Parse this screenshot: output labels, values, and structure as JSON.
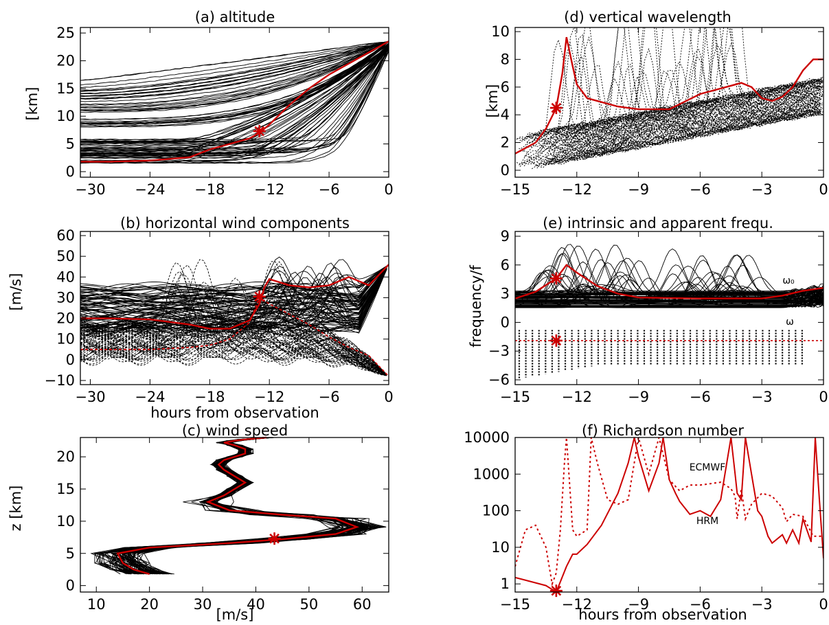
{
  "colors": {
    "model": "#000000",
    "highlight": "#cc0000",
    "background": "#ffffff"
  },
  "panels": {
    "a": {
      "title": "(a) altitude",
      "ylabel": "[km]",
      "xlabel": "",
      "xticks": [
        "-30",
        "-24",
        "-18",
        "-12",
        "-6",
        "0"
      ],
      "yticks": [
        "0",
        "5",
        "10",
        "15",
        "20",
        "25"
      ]
    },
    "b": {
      "title": "(b) horizontal wind components",
      "ylabel": "[m/s]",
      "xlabel": "hours from observation",
      "xticks": [
        "-30",
        "-24",
        "-18",
        "-12",
        "-6",
        "0"
      ],
      "yticks": [
        "-10",
        "0",
        "10",
        "20",
        "30",
        "40",
        "50",
        "60"
      ]
    },
    "c": {
      "title": "(c) wind speed",
      "ylabel": "z [km]",
      "xlabel": "[m/s]",
      "xticks": [
        "10",
        "20",
        "30",
        "40",
        "50",
        "60"
      ],
      "yticks": [
        "0",
        "5",
        "10",
        "15",
        "20"
      ]
    },
    "d": {
      "title": "(d) vertical wavelength",
      "ylabel": "[km]",
      "xlabel": "",
      "xticks": [
        "-15",
        "-12",
        "-9",
        "-6",
        "-3",
        "0"
      ],
      "yticks": [
        "0",
        "2",
        "4",
        "6",
        "8",
        "10"
      ]
    },
    "e": {
      "title": "(e) intrinsic and apparent frequ.",
      "ylabel": "frequency/f",
      "xlabel": "",
      "xticks": [
        "-15",
        "-12",
        "-9",
        "-6",
        "-3",
        "0"
      ],
      "yticks": [
        "-6",
        "-3",
        "0",
        "3",
        "6",
        "9"
      ],
      "annotations": [
        "ω₀",
        "ω"
      ]
    },
    "f": {
      "title": "(f) Richardson number",
      "ylabel": "",
      "xlabel": "hours from observation",
      "xticks": [
        "-15",
        "-12",
        "-9",
        "-6",
        "-3",
        "0"
      ],
      "yticks": [
        "1",
        "10",
        "100",
        "1000",
        "10000"
      ],
      "annotations": [
        "ECMWF",
        "HRM"
      ]
    }
  },
  "chart_data": [
    {
      "type": "line",
      "title": "(a) altitude",
      "xlabel": "",
      "ylabel": "[km]",
      "xlim": [
        -31,
        0
      ],
      "ylim": [
        -1,
        26
      ],
      "series": [
        {
          "x": [
            -31,
            -28,
            -24,
            -20,
            -18,
            -16,
            -14,
            -13,
            -12,
            -10,
            -8,
            -6,
            -4,
            -2,
            0
          ],
          "y": [
            1.8,
            1.8,
            2.0,
            2.6,
            4.0,
            5.0,
            6.0,
            7.0,
            8.5,
            12,
            15,
            17.5,
            19.5,
            21.5,
            23.5
          ]
        }
      ],
      "ensemble": {
        "count": 90,
        "start_range_km": [
          1.5,
          16.5
        ],
        "end_km": 23.5
      },
      "marker": {
        "x": -13,
        "y": 7.3
      }
    },
    {
      "type": "line",
      "title": "(b) horizontal wind components",
      "xlabel": "hours from observation",
      "ylabel": "[m/s]",
      "xlim": [
        -31,
        0
      ],
      "ylim": [
        -12,
        62
      ],
      "series": [
        {
          "x": [
            -31,
            -28,
            -24,
            -20,
            -18,
            -16,
            -14,
            -13,
            -12.5,
            -12,
            -10,
            -8,
            -6,
            -4,
            -2,
            0
          ],
          "y": [
            20,
            20,
            19.5,
            17,
            15,
            15,
            19,
            27,
            35,
            39,
            36,
            35,
            36,
            40,
            36,
            46
          ]
        },
        {
          "x": [
            -31,
            -28,
            -24,
            -20,
            -18,
            -16,
            -14,
            -13,
            -12,
            -10,
            -8,
            -6,
            -4,
            -2,
            0
          ],
          "y": [
            5,
            5,
            5,
            6,
            7,
            10,
            18,
            30,
            27,
            22,
            17,
            11,
            6,
            2,
            -8
          ]
        }
      ],
      "marker": {
        "x": -13,
        "y": 30.5
      }
    },
    {
      "type": "line",
      "title": "(c) wind speed",
      "xlabel": "[m/s]",
      "ylabel": "z [km]",
      "xlim": [
        7,
        65
      ],
      "ylim": [
        -1,
        23
      ],
      "series": [
        {
          "x": [
            20,
            17,
            15,
            14,
            20,
            35,
            45,
            55,
            59,
            55,
            45,
            35,
            31,
            34,
            36,
            38,
            36,
            34,
            33,
            34,
            36,
            38,
            38,
            36,
            34,
            36,
            38,
            42
          ],
          "y": [
            1.8,
            2.5,
            3.5,
            5.0,
            5.9,
            6.6,
            7.2,
            8.0,
            9.1,
            10.4,
            11,
            11.7,
            13,
            14,
            15,
            16,
            17,
            18,
            18.8,
            19.5,
            20,
            20.5,
            21.2,
            21.8,
            22.2,
            22.5,
            22.7,
            23
          ]
        }
      ],
      "marker": {
        "x": 43.5,
        "y": 7.3
      }
    },
    {
      "type": "line",
      "title": "(d) vertical wavelength",
      "xlabel": "",
      "ylabel": "[km]",
      "xlim": [
        -15,
        0
      ],
      "ylim": [
        -0.5,
        10.3
      ],
      "series": [
        {
          "x": [
            -15,
            -14,
            -13.5,
            -13,
            -12.7,
            -12.5,
            -12.2,
            -12,
            -11.5,
            -10,
            -9,
            -7.5,
            -6,
            -4.5,
            -4,
            -3.5,
            -3,
            -2.5,
            -2,
            -1.5,
            -1,
            -0.5,
            0
          ],
          "y": [
            1.2,
            2.0,
            3.0,
            4.5,
            7,
            9.6,
            7.5,
            6.2,
            5.2,
            4.6,
            4.4,
            4.4,
            5.5,
            6.1,
            6.3,
            6.0,
            5.2,
            5.0,
            5.3,
            6.0,
            7.2,
            8.0,
            8.0
          ]
        }
      ],
      "marker": {
        "x": -13,
        "y": 4.5
      }
    },
    {
      "type": "line",
      "title": "(e) intrinsic and apparent frequ.",
      "xlabel": "",
      "ylabel": "frequency/f",
      "xlim": [
        -15,
        0
      ],
      "ylim": [
        -6.5,
        9.5
      ],
      "series": [
        {
          "name": "ω₀",
          "x": [
            -15,
            -14,
            -13,
            -12.5,
            -12,
            -11,
            -10,
            -9,
            -6,
            -3,
            -2,
            -1,
            0
          ],
          "y": [
            2.5,
            3.2,
            4.6,
            6.0,
            5.2,
            3.8,
            3.0,
            2.6,
            2.5,
            2.5,
            2.8,
            3.3,
            3.6
          ]
        },
        {
          "name": "ω",
          "x": [
            -15,
            -12,
            -9,
            -6,
            -3,
            0
          ],
          "y": [
            -1.9,
            -1.9,
            -1.9,
            -1.9,
            -1.9,
            -1.9
          ]
        }
      ],
      "marker": {
        "x": -13,
        "y": -1.9
      }
    },
    {
      "type": "line",
      "title": "(f) Richardson number",
      "xlabel": "hours from observation",
      "ylabel": "",
      "xlim": [
        -15,
        0
      ],
      "ylim": [
        0.6,
        10000
      ],
      "yscale": "log",
      "series": [
        {
          "name": "HRM",
          "x": [
            -15,
            -13.5,
            -13,
            -12.5,
            -12.2,
            -12,
            -11.5,
            -10.8,
            -10,
            -9.5,
            -9.2,
            -9,
            -8.5,
            -8,
            -7.8,
            -7.5,
            -7.2,
            -7,
            -6.5,
            -6,
            -5.5,
            -5,
            -4.5,
            -4.3,
            -4.2,
            -4,
            -3.8,
            -3.5,
            -3.2,
            -3,
            -2.7,
            -2.5,
            -2,
            -1.8,
            -1.5,
            -1.2,
            -1,
            -0.6,
            -0.4,
            -0.2,
            0
          ],
          "y": [
            1.5,
            0.9,
            0.6,
            3,
            6.5,
            6.5,
            12,
            40,
            300,
            2000,
            10000,
            3000,
            350,
            2000,
            10000,
            700,
            300,
            180,
            80,
            100,
            70,
            200,
            10000,
            1000,
            300,
            200,
            10000,
            1000,
            100,
            70,
            20,
            13,
            22,
            13,
            30,
            13,
            60,
            14,
            10000,
            200,
            5
          ]
        },
        {
          "name": "ECMWF",
          "x": [
            -15,
            -14.5,
            -14,
            -13.5,
            -13.2,
            -13,
            -12.8,
            -12.6,
            -12.5,
            -12.2,
            -12,
            -11.5,
            -11.3,
            -11,
            -10.5,
            -10,
            -9.5,
            -9,
            -8.5,
            -8,
            -7.5,
            -7,
            -6.5,
            -6,
            -5,
            -4.5,
            -4.3,
            -4.2,
            -4,
            -3.8,
            -3.5,
            -3,
            -2.5,
            -2,
            -1.8,
            -1.5,
            -1,
            -0.5,
            0
          ],
          "y": [
            3,
            30,
            40,
            10,
            1,
            2,
            30,
            2000,
            10000,
            30,
            20,
            30,
            10000,
            2000,
            200,
            150,
            200,
            10000,
            1000,
            10000,
            700,
            350,
            500,
            500,
            600,
            400,
            250,
            60,
            400,
            60,
            150,
            300,
            250,
            120,
            50,
            80,
            70,
            20,
            20
          ]
        }
      ],
      "marker": {
        "x": -13,
        "y": 0.65
      }
    }
  ]
}
